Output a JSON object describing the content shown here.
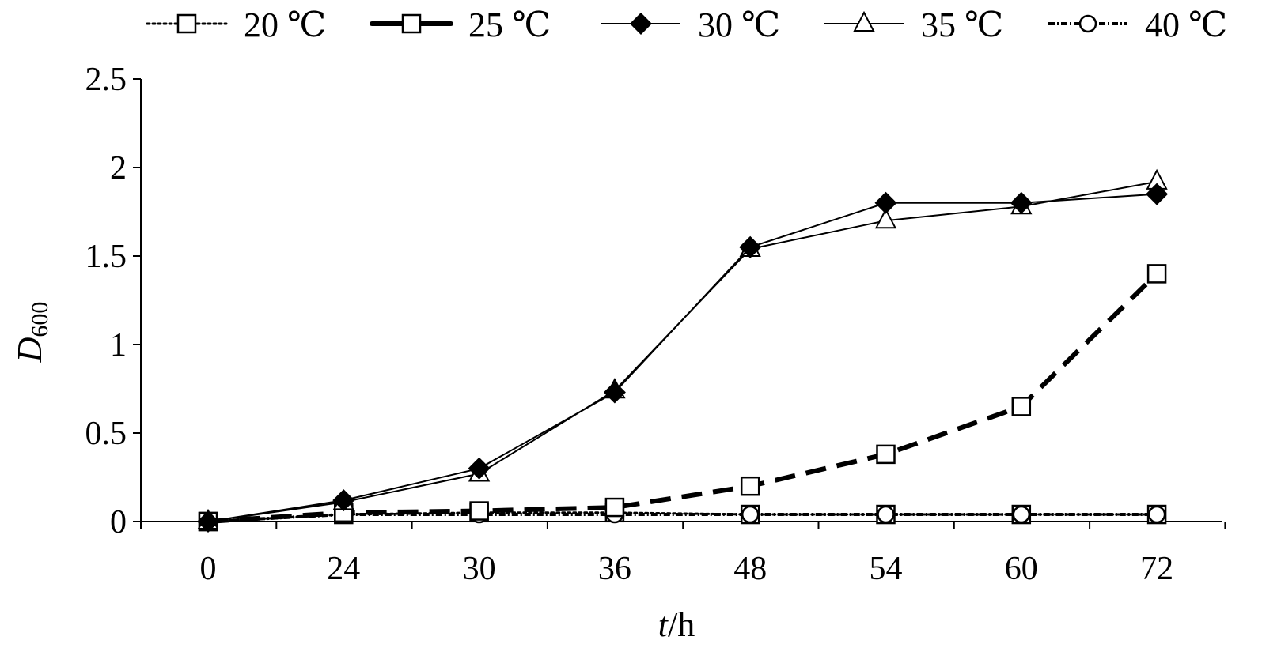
{
  "chart_data": {
    "type": "line",
    "title": "",
    "xlabel": "t/h",
    "xlabel_italic": "t",
    "xlabel_unit": "/h",
    "ylabel": "D600",
    "ylabel_main": "D",
    "ylabel_sub": "600",
    "categories": [
      "0",
      "24",
      "30",
      "36",
      "48",
      "54",
      "60",
      "72"
    ],
    "ylim": [
      0,
      2.5
    ],
    "yticks": [
      "0",
      "0.5",
      "1",
      "1.5",
      "2",
      "2.5"
    ],
    "grid": false,
    "legend_position": "top",
    "series": [
      {
        "name": "20 ℃",
        "values": [
          0,
          0.04,
          0.05,
          0.05,
          0.04,
          0.04,
          0.04,
          0.04
        ],
        "marker": "square",
        "line": "dotted"
      },
      {
        "name": "25 ℃",
        "values": [
          0,
          0.05,
          0.06,
          0.08,
          0.2,
          0.38,
          0.65,
          1.4
        ],
        "marker": "square",
        "line": "bold-dashed"
      },
      {
        "name": "30 ℃",
        "values": [
          0,
          0.12,
          0.3,
          0.73,
          1.55,
          1.8,
          1.8,
          1.85
        ],
        "marker": "diamond-filled",
        "line": "solid"
      },
      {
        "name": "35 ℃",
        "values": [
          0,
          0.11,
          0.27,
          0.74,
          1.54,
          1.7,
          1.78,
          1.92
        ],
        "marker": "triangle",
        "line": "solid"
      },
      {
        "name": "40 ℃",
        "values": [
          0,
          0.04,
          0.04,
          0.04,
          0.04,
          0.04,
          0.04,
          0.04
        ],
        "marker": "circle",
        "line": "dash-dot"
      }
    ]
  }
}
